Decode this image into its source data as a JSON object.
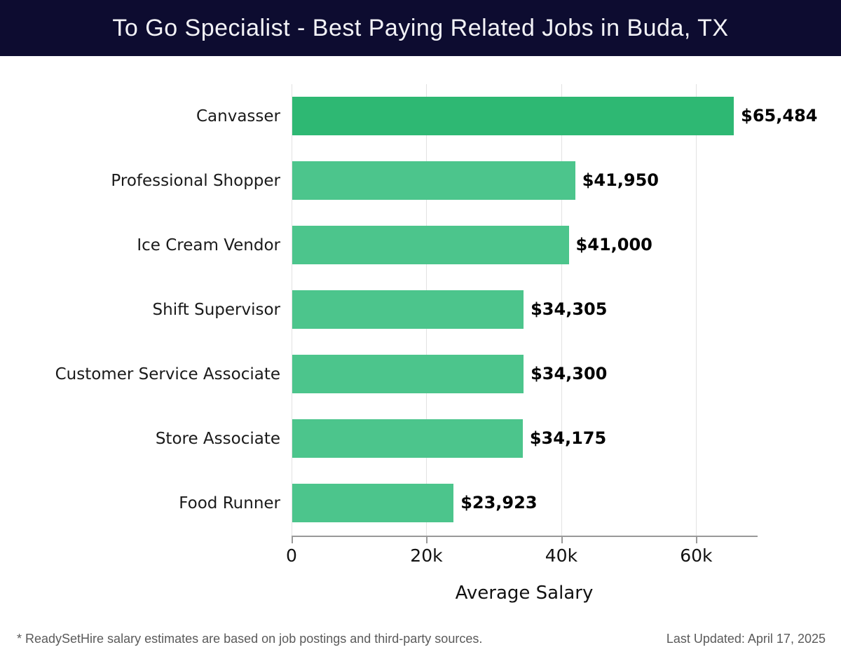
{
  "header": {
    "title": "To Go Specialist - Best Paying Related Jobs in Buda, TX"
  },
  "chart_data": {
    "type": "bar",
    "orientation": "horizontal",
    "title": "To Go Specialist - Best Paying Related Jobs in Buda, TX",
    "categories": [
      "Canvasser",
      "Professional Shopper",
      "Ice Cream Vendor",
      "Shift Supervisor",
      "Customer Service Associate",
      "Store Associate",
      "Food Runner"
    ],
    "values": [
      65484,
      41950,
      41000,
      34305,
      34300,
      34175,
      23923
    ],
    "value_labels": [
      "$65,484",
      "$41,950",
      "$41,000",
      "$34,305",
      "$34,300",
      "$34,175",
      "$23,923"
    ],
    "xlabel": "Average Salary",
    "ylabel": "",
    "xlim": [
      0,
      69000
    ],
    "x_ticks": [
      {
        "value": 0,
        "label": "0"
      },
      {
        "value": 20000,
        "label": "20k"
      },
      {
        "value": 40000,
        "label": "40k"
      },
      {
        "value": 60000,
        "label": "60k"
      }
    ],
    "grid": true,
    "legend_position": "none",
    "highlight_first_bar": true,
    "colors": {
      "bar_primary": "#2eb873",
      "bar_secondary": "#4cc58c",
      "header_bg": "#0d0c30",
      "gridline": "#e2e2e2",
      "axis": "#999999",
      "label_text": "#1a1a1a",
      "value_text": "#000000",
      "footer_text": "#5a5a5a"
    }
  },
  "footer": {
    "disclaimer": "* ReadySetHire salary estimates are based on job postings and third-party sources.",
    "last_updated": "Last Updated: April 17, 2025"
  }
}
